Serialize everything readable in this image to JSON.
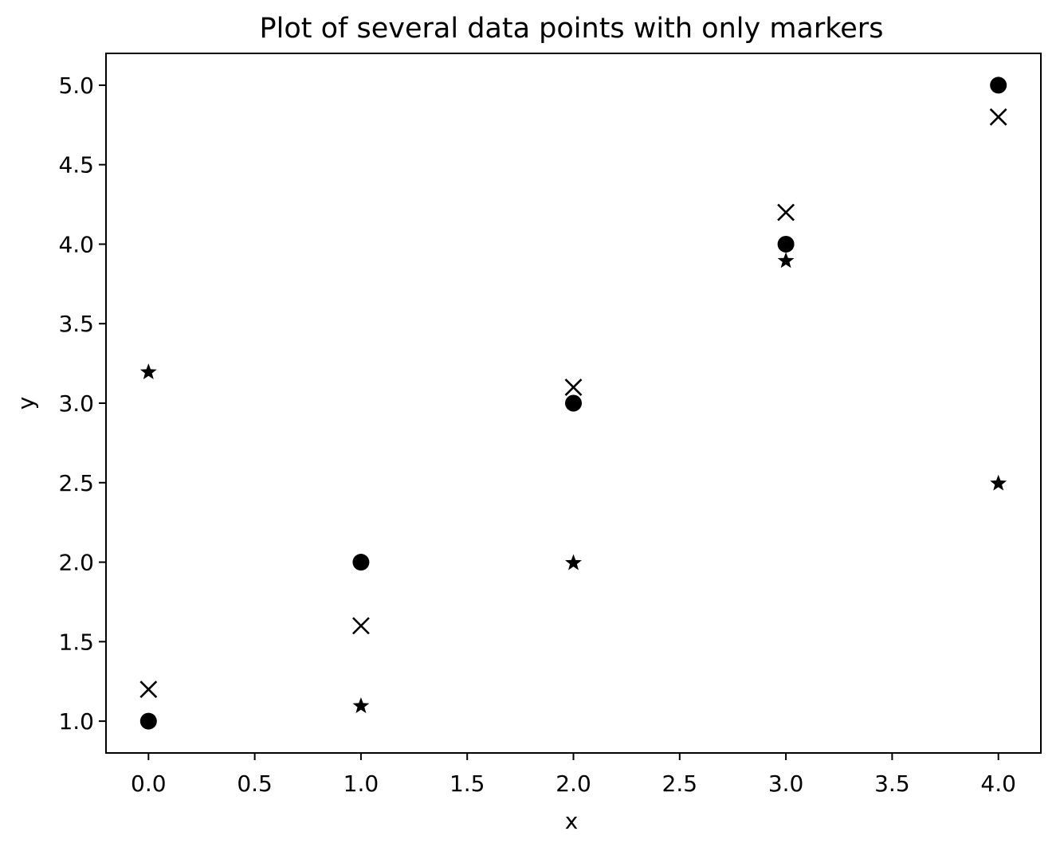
{
  "chart_data": {
    "type": "scatter",
    "title": "Plot of several data points with only markers",
    "xlabel": "x",
    "ylabel": "y",
    "xlim": [
      -0.2,
      4.2
    ],
    "ylim": [
      0.8,
      5.2
    ],
    "x_ticks": [
      0.0,
      0.5,
      1.0,
      1.5,
      2.0,
      2.5,
      3.0,
      3.5,
      4.0
    ],
    "x_tick_labels": [
      "0.0",
      "0.5",
      "1.0",
      "1.5",
      "2.0",
      "2.5",
      "3.0",
      "3.5",
      "4.0"
    ],
    "y_ticks": [
      1.0,
      1.5,
      2.0,
      2.5,
      3.0,
      3.5,
      4.0,
      4.5,
      5.0
    ],
    "y_tick_labels": [
      "1.0",
      "1.5",
      "2.0",
      "2.5",
      "3.0",
      "3.5",
      "4.0",
      "4.5",
      "5.0"
    ],
    "grid": false,
    "legend": false,
    "series": [
      {
        "marker": "circle",
        "color": "#000000",
        "x": [
          0,
          1,
          2,
          3,
          4
        ],
        "y": [
          1.0,
          2.0,
          3.0,
          4.0,
          5.0
        ]
      },
      {
        "marker": "x",
        "color": "#000000",
        "x": [
          0,
          1,
          2,
          3,
          4
        ],
        "y": [
          1.2,
          1.6,
          3.1,
          4.2,
          4.8
        ]
      },
      {
        "marker": "star",
        "color": "#000000",
        "x": [
          0,
          1,
          2,
          3,
          4
        ],
        "y": [
          3.2,
          1.1,
          2.0,
          3.9,
          2.5
        ]
      }
    ]
  }
}
